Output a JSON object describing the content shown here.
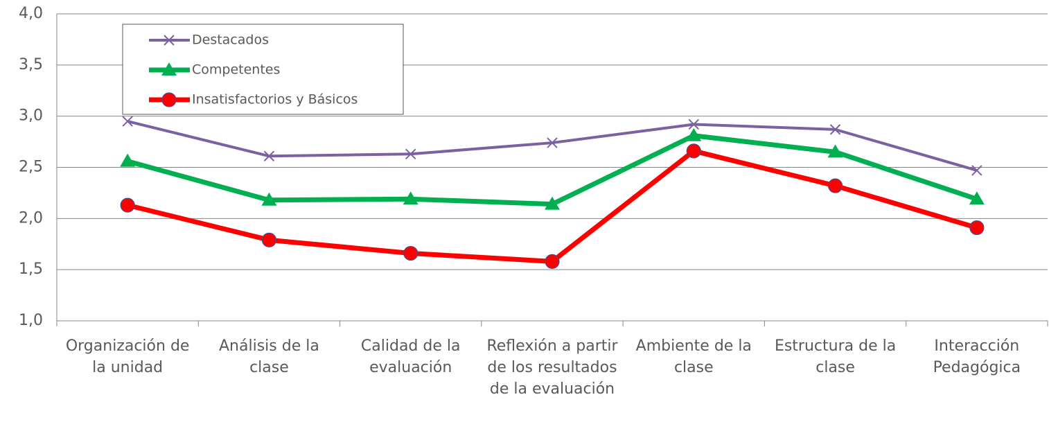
{
  "chart_data": {
    "type": "line",
    "categories": [
      "Organización de la unidad",
      "Análisis de la clase",
      "Calidad de la evaluación",
      "Reflexión a partir de los resultados de la evaluación",
      "Ambiente de la clase",
      "Estructura de la clase",
      "Interacción Pedagógica"
    ],
    "series": [
      {
        "name": "Destacados",
        "color": "#7d60a0",
        "marker": "x",
        "values": [
          2.95,
          2.61,
          2.63,
          2.74,
          2.92,
          2.87,
          2.47
        ]
      },
      {
        "name": "Competentes",
        "color": "#00b050",
        "marker": "triangle",
        "values": [
          2.56,
          2.18,
          2.19,
          2.14,
          2.81,
          2.65,
          2.19
        ]
      },
      {
        "name": "Insatisfactorios y Básicos",
        "color": "#ff0000",
        "marker": "circle",
        "values": [
          2.13,
          1.79,
          1.66,
          1.58,
          2.66,
          2.32,
          1.91
        ]
      }
    ],
    "ylim": [
      1,
      4
    ],
    "yticks": [
      {
        "value": 1,
        "label": "1,0"
      },
      {
        "value": 1.5,
        "label": "1,5"
      },
      {
        "value": 2,
        "label": "2,0"
      },
      {
        "value": 2.5,
        "label": "2,5"
      },
      {
        "value": 3,
        "label": "3,0"
      },
      {
        "value": 3.5,
        "label": "3,5"
      },
      {
        "value": 4,
        "label": "4,0"
      }
    ],
    "grid": true,
    "legend": "upper left"
  }
}
